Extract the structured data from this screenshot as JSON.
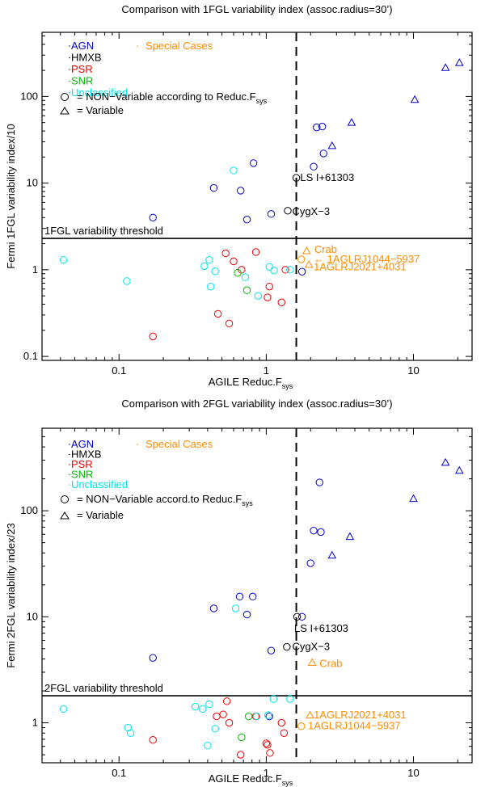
{
  "chart_data": [
    {
      "type": "scatter",
      "title": "Comparison with 1FGL variability index (assoc.radius=30’)",
      "xlabel": "AGILE Reduc.F",
      "xlabel_sub": "sys",
      "ylabel": "Fermi 1FGL variability index/10",
      "xscale": "log",
      "yscale": "log",
      "xlim": [
        0.03,
        25
      ],
      "ylim": [
        0.09,
        550
      ],
      "xticks": [
        {
          "v": 0.1,
          "label": "0.1"
        },
        {
          "v": 1,
          "label": "1"
        },
        {
          "v": 10,
          "label": "10"
        }
      ],
      "yticks": [
        {
          "v": 0.1,
          "label": "0.1"
        },
        {
          "v": 1,
          "label": "1"
        },
        {
          "v": 10,
          "label": "10"
        },
        {
          "v": 100,
          "label": "100"
        }
      ],
      "vline_x": 1.6,
      "threshold": {
        "y": 2.3,
        "label": "1FGL variability threshold"
      },
      "legend": {
        "entries": [
          {
            "label": "AGN",
            "color": "#0000cc"
          },
          {
            "label": "HMXB",
            "color": "#000000"
          },
          {
            "label": "PSR",
            "color": "#ee0000"
          },
          {
            "label": "SNR",
            "color": "#00bb00"
          },
          {
            "label": "Unclassified",
            "color": "#00e5ee"
          }
        ],
        "special_label": "Special Cases",
        "special_color": "#ff8c00",
        "marker_lines": [
          {
            "marker": "circle",
            "text": "= NON−Variable according to Reduc.F",
            "sub": "sys"
          },
          {
            "marker": "triangle",
            "text": "= Variable",
            "sub": ""
          }
        ]
      },
      "points": [
        {
          "x": 0.17,
          "y": 4.0,
          "marker": "circle",
          "cls": "AGN"
        },
        {
          "x": 0.44,
          "y": 8.8,
          "marker": "circle",
          "cls": "AGN"
        },
        {
          "x": 0.67,
          "y": 8.2,
          "marker": "circle",
          "cls": "AGN"
        },
        {
          "x": 0.82,
          "y": 17,
          "marker": "circle",
          "cls": "AGN"
        },
        {
          "x": 0.74,
          "y": 3.8,
          "marker": "circle",
          "cls": "AGN"
        },
        {
          "x": 1.08,
          "y": 4.4,
          "marker": "circle",
          "cls": "AGN"
        },
        {
          "x": 2.1,
          "y": 15.5,
          "marker": "circle",
          "cls": "AGN"
        },
        {
          "x": 2.45,
          "y": 22,
          "marker": "circle",
          "cls": "AGN"
        },
        {
          "x": 2.2,
          "y": 44,
          "marker": "circle",
          "cls": "AGN"
        },
        {
          "x": 2.4,
          "y": 45,
          "marker": "circle",
          "cls": "AGN"
        },
        {
          "x": 1.75,
          "y": 0.95,
          "marker": "circle",
          "cls": "AGN"
        },
        {
          "x": 2.8,
          "y": 27,
          "marker": "triangle",
          "cls": "AGN"
        },
        {
          "x": 3.8,
          "y": 50,
          "marker": "triangle",
          "cls": "AGN"
        },
        {
          "x": 10.2,
          "y": 92,
          "marker": "triangle",
          "cls": "AGN"
        },
        {
          "x": 16.5,
          "y": 215,
          "marker": "triangle",
          "cls": "AGN"
        },
        {
          "x": 20.5,
          "y": 245,
          "marker": "triangle",
          "cls": "AGN"
        },
        {
          "x": 1.6,
          "y": 11.5,
          "marker": "circle",
          "cls": "HMXB"
        },
        {
          "x": 1.4,
          "y": 4.8,
          "marker": "circle",
          "cls": "HMXB"
        },
        {
          "x": 0.17,
          "y": 0.17,
          "marker": "circle",
          "cls": "PSR"
        },
        {
          "x": 0.47,
          "y": 0.31,
          "marker": "circle",
          "cls": "PSR"
        },
        {
          "x": 0.56,
          "y": 0.24,
          "marker": "circle",
          "cls": "PSR"
        },
        {
          "x": 0.53,
          "y": 1.55,
          "marker": "circle",
          "cls": "PSR"
        },
        {
          "x": 0.6,
          "y": 1.25,
          "marker": "circle",
          "cls": "PSR"
        },
        {
          "x": 0.68,
          "y": 1.0,
          "marker": "circle",
          "cls": "PSR"
        },
        {
          "x": 0.85,
          "y": 1.6,
          "marker": "circle",
          "cls": "PSR"
        },
        {
          "x": 1.05,
          "y": 0.64,
          "marker": "circle",
          "cls": "PSR"
        },
        {
          "x": 1.02,
          "y": 0.48,
          "marker": "circle",
          "cls": "PSR"
        },
        {
          "x": 1.27,
          "y": 0.42,
          "marker": "circle",
          "cls": "PSR"
        },
        {
          "x": 1.35,
          "y": 1.0,
          "marker": "circle",
          "cls": "PSR"
        },
        {
          "x": 0.64,
          "y": 0.92,
          "marker": "circle",
          "cls": "SNR"
        },
        {
          "x": 0.74,
          "y": 0.58,
          "marker": "circle",
          "cls": "SNR"
        },
        {
          "x": 0.042,
          "y": 1.3,
          "marker": "circle",
          "cls": "Unclassified"
        },
        {
          "x": 0.113,
          "y": 0.74,
          "marker": "circle",
          "cls": "Unclassified"
        },
        {
          "x": 0.38,
          "y": 1.1,
          "marker": "circle",
          "cls": "Unclassified"
        },
        {
          "x": 0.41,
          "y": 1.3,
          "marker": "circle",
          "cls": "Unclassified"
        },
        {
          "x": 0.45,
          "y": 0.96,
          "marker": "circle",
          "cls": "Unclassified"
        },
        {
          "x": 0.42,
          "y": 0.64,
          "marker": "circle",
          "cls": "Unclassified"
        },
        {
          "x": 0.72,
          "y": 0.82,
          "marker": "circle",
          "cls": "Unclassified"
        },
        {
          "x": 0.88,
          "y": 0.5,
          "marker": "circle",
          "cls": "Unclassified"
        },
        {
          "x": 1.05,
          "y": 1.08,
          "marker": "circle",
          "cls": "Unclassified"
        },
        {
          "x": 1.13,
          "y": 0.98,
          "marker": "circle",
          "cls": "Unclassified"
        },
        {
          "x": 1.45,
          "y": 1.0,
          "marker": "circle",
          "cls": "Unclassified"
        },
        {
          "x": 0.6,
          "y": 14,
          "marker": "circle",
          "cls": "Unclassified"
        },
        {
          "x": 1.88,
          "y": 1.65,
          "marker": "triangle",
          "cls": "Special"
        },
        {
          "x": 1.73,
          "y": 1.32,
          "marker": "circle",
          "cls": "Special"
        },
        {
          "x": 1.95,
          "y": 1.15,
          "marker": "triangle",
          "cls": "Special"
        }
      ],
      "annotations": [
        {
          "text": "LS I+61303",
          "x": 1.7,
          "y": 11.5,
          "color": "#000000"
        },
        {
          "text": "CygX−3",
          "x": 1.5,
          "y": 4.7,
          "color": "#000000"
        },
        {
          "text": "Crab",
          "x": 2.12,
          "y": 1.7,
          "color": "#ff8c00"
        },
        {
          "text": "← 1AGLRJ1044−5937",
          "x": 2.1,
          "y": 1.32,
          "color": "#ff8c00"
        },
        {
          "text": "1AGLRJ2021+4031",
          "x": 2.1,
          "y": 1.08,
          "color": "#ff8c00"
        }
      ]
    },
    {
      "type": "scatter",
      "title": "Comparison with 2FGL variability index (assoc.radius=30’)",
      "xlabel": "AGILE Reduc.F",
      "xlabel_sub": "sys",
      "ylabel": "Fermi 2FGL variability index/23",
      "xscale": "log",
      "yscale": "log",
      "xlim": [
        0.03,
        25
      ],
      "ylim": [
        0.42,
        600
      ],
      "xticks": [
        {
          "v": 0.1,
          "label": "0.1"
        },
        {
          "v": 1,
          "label": "1"
        },
        {
          "v": 10,
          "label": "10"
        }
      ],
      "yticks": [
        {
          "v": 1,
          "label": "1"
        },
        {
          "v": 10,
          "label": "10"
        },
        {
          "v": 100,
          "label": "100"
        }
      ],
      "vline_x": 1.6,
      "threshold": {
        "y": 1.8,
        "label": "2FGL variability threshold"
      },
      "legend": {
        "entries": [
          {
            "label": "AGN",
            "color": "#0000cc"
          },
          {
            "label": "HMXB",
            "color": "#000000"
          },
          {
            "label": "PSR",
            "color": "#ee0000"
          },
          {
            "label": "SNR",
            "color": "#00bb00"
          },
          {
            "label": "Unclassified",
            "color": "#00e5ee"
          }
        ],
        "special_label": "Special Cases",
        "special_color": "#ff8c00",
        "marker_lines": [
          {
            "marker": "circle",
            "text": "= NON−Variable accord.to Reduc.F",
            "sub": "sys"
          },
          {
            "marker": "triangle",
            "text": "= Variable",
            "sub": ""
          }
        ]
      },
      "points": [
        {
          "x": 0.17,
          "y": 4.1,
          "marker": "circle",
          "cls": "AGN"
        },
        {
          "x": 0.44,
          "y": 12,
          "marker": "circle",
          "cls": "AGN"
        },
        {
          "x": 0.66,
          "y": 15.5,
          "marker": "circle",
          "cls": "AGN"
        },
        {
          "x": 0.81,
          "y": 15.5,
          "marker": "circle",
          "cls": "AGN"
        },
        {
          "x": 0.74,
          "y": 10.5,
          "marker": "circle",
          "cls": "AGN"
        },
        {
          "x": 1.08,
          "y": 4.8,
          "marker": "circle",
          "cls": "AGN"
        },
        {
          "x": 1.75,
          "y": 10,
          "marker": "circle",
          "cls": "AGN"
        },
        {
          "x": 2.0,
          "y": 32,
          "marker": "circle",
          "cls": "AGN"
        },
        {
          "x": 2.1,
          "y": 65,
          "marker": "circle",
          "cls": "AGN"
        },
        {
          "x": 2.35,
          "y": 63,
          "marker": "circle",
          "cls": "AGN"
        },
        {
          "x": 2.3,
          "y": 185,
          "marker": "circle",
          "cls": "AGN"
        },
        {
          "x": 1.05,
          "y": 1.15,
          "marker": "circle",
          "cls": "AGN"
        },
        {
          "x": 2.8,
          "y": 38,
          "marker": "triangle",
          "cls": "AGN"
        },
        {
          "x": 3.7,
          "y": 57,
          "marker": "triangle",
          "cls": "AGN"
        },
        {
          "x": 10.0,
          "y": 130,
          "marker": "triangle",
          "cls": "AGN"
        },
        {
          "x": 16.5,
          "y": 285,
          "marker": "triangle",
          "cls": "AGN"
        },
        {
          "x": 20.5,
          "y": 240,
          "marker": "triangle",
          "cls": "AGN"
        },
        {
          "x": 1.62,
          "y": 10,
          "marker": "circle",
          "cls": "HMXB"
        },
        {
          "x": 1.38,
          "y": 5.2,
          "marker": "circle",
          "cls": "HMXB"
        },
        {
          "x": 0.17,
          "y": 0.69,
          "marker": "circle",
          "cls": "PSR"
        },
        {
          "x": 0.46,
          "y": 1.15,
          "marker": "circle",
          "cls": "PSR"
        },
        {
          "x": 0.51,
          "y": 1.2,
          "marker": "circle",
          "cls": "PSR"
        },
        {
          "x": 0.54,
          "y": 1.6,
          "marker": "circle",
          "cls": "PSR"
        },
        {
          "x": 0.56,
          "y": 1.0,
          "marker": "circle",
          "cls": "PSR"
        },
        {
          "x": 0.67,
          "y": 0.5,
          "marker": "circle",
          "cls": "PSR"
        },
        {
          "x": 0.85,
          "y": 1.15,
          "marker": "circle",
          "cls": "PSR"
        },
        {
          "x": 1.0,
          "y": 0.64,
          "marker": "circle",
          "cls": "PSR"
        },
        {
          "x": 1.02,
          "y": 0.62,
          "marker": "circle",
          "cls": "PSR"
        },
        {
          "x": 1.06,
          "y": 0.52,
          "marker": "circle",
          "cls": "PSR"
        },
        {
          "x": 1.27,
          "y": 1.0,
          "marker": "circle",
          "cls": "PSR"
        },
        {
          "x": 1.32,
          "y": 0.8,
          "marker": "circle",
          "cls": "PSR"
        },
        {
          "x": 0.68,
          "y": 0.73,
          "marker": "circle",
          "cls": "SNR"
        },
        {
          "x": 0.76,
          "y": 1.15,
          "marker": "circle",
          "cls": "SNR"
        },
        {
          "x": 0.042,
          "y": 1.35,
          "marker": "circle",
          "cls": "Unclassified"
        },
        {
          "x": 0.115,
          "y": 0.9,
          "marker": "circle",
          "cls": "Unclassified"
        },
        {
          "x": 0.12,
          "y": 0.8,
          "marker": "circle",
          "cls": "Unclassified"
        },
        {
          "x": 0.33,
          "y": 1.42,
          "marker": "circle",
          "cls": "Unclassified"
        },
        {
          "x": 0.37,
          "y": 1.35,
          "marker": "circle",
          "cls": "Unclassified"
        },
        {
          "x": 0.41,
          "y": 1.5,
          "marker": "circle",
          "cls": "Unclassified"
        },
        {
          "x": 0.4,
          "y": 0.61,
          "marker": "circle",
          "cls": "Unclassified"
        },
        {
          "x": 0.45,
          "y": 0.88,
          "marker": "circle",
          "cls": "Unclassified"
        },
        {
          "x": 0.86,
          "y": 1.15,
          "marker": "circle",
          "cls": "Unclassified"
        },
        {
          "x": 1.03,
          "y": 1.18,
          "marker": "circle",
          "cls": "Unclassified"
        },
        {
          "x": 1.12,
          "y": 1.68,
          "marker": "circle",
          "cls": "Unclassified"
        },
        {
          "x": 1.45,
          "y": 1.68,
          "marker": "circle",
          "cls": "Unclassified"
        },
        {
          "x": 0.62,
          "y": 12,
          "marker": "circle",
          "cls": "Unclassified"
        },
        {
          "x": 2.05,
          "y": 3.7,
          "marker": "triangle",
          "cls": "Special"
        },
        {
          "x": 1.98,
          "y": 1.18,
          "marker": "triangle",
          "cls": "Special"
        },
        {
          "x": 1.73,
          "y": 0.93,
          "marker": "circle",
          "cls": "Special"
        }
      ],
      "annotations": [
        {
          "text": "LS I+61303",
          "x": 1.55,
          "y": 7.7,
          "color": "#000000"
        },
        {
          "text": "CygX−3",
          "x": 1.5,
          "y": 5.2,
          "color": "#000000"
        },
        {
          "text": "Crab",
          "x": 2.3,
          "y": 3.6,
          "color": "#ff8c00"
        },
        {
          "text": "1AGLRJ2021+4031",
          "x": 2.1,
          "y": 1.18,
          "color": "#ff8c00"
        },
        {
          "text": "1AGLRJ1044−5937",
          "x": 1.92,
          "y": 0.93,
          "color": "#ff8c00"
        }
      ]
    }
  ],
  "class_colors": {
    "AGN": "#0000cc",
    "HMXB": "#000000",
    "PSR": "#ee0000",
    "SNR": "#00bb00",
    "Unclassified": "#00e5ee",
    "Special": "#ff8c00"
  }
}
